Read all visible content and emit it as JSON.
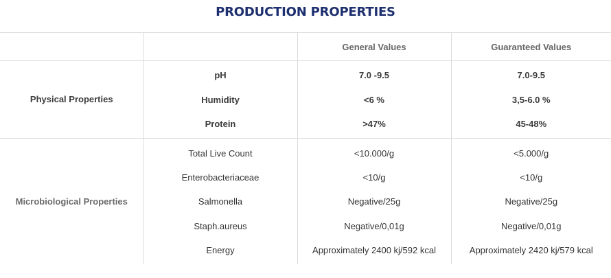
{
  "title": "PRODUCTION PROPERTIES",
  "header": {
    "col1": "",
    "col2": "",
    "col3": "General Values",
    "col4": "Guaranteed Values"
  },
  "sections": [
    {
      "name": "Physical Properties",
      "properties": [
        "pH",
        "Humidity",
        "Protein"
      ],
      "general": [
        "7.0 -9.5",
        "<6 %",
        ">47%"
      ],
      "guaranteed": [
        "7.0-9.5",
        "3,5-6.0 %",
        "45-48%"
      ]
    },
    {
      "name": "Microbiological Properties",
      "properties": [
        "Total Live Count",
        "Enterobacteriaceae",
        "Salmonella",
        "Staph.aureus",
        "Energy"
      ],
      "general": [
        "<10.000/g",
        "<10/g",
        "Negative/25g",
        "Negative/0,01g",
        "Approximately 2400 kj/592 kcal"
      ],
      "guaranteed": [
        "<5.000/g",
        "<10/g",
        "Negative/25g",
        "Negative/0,01g",
        "Approximately 2420 kj/579 kcal"
      ]
    }
  ]
}
